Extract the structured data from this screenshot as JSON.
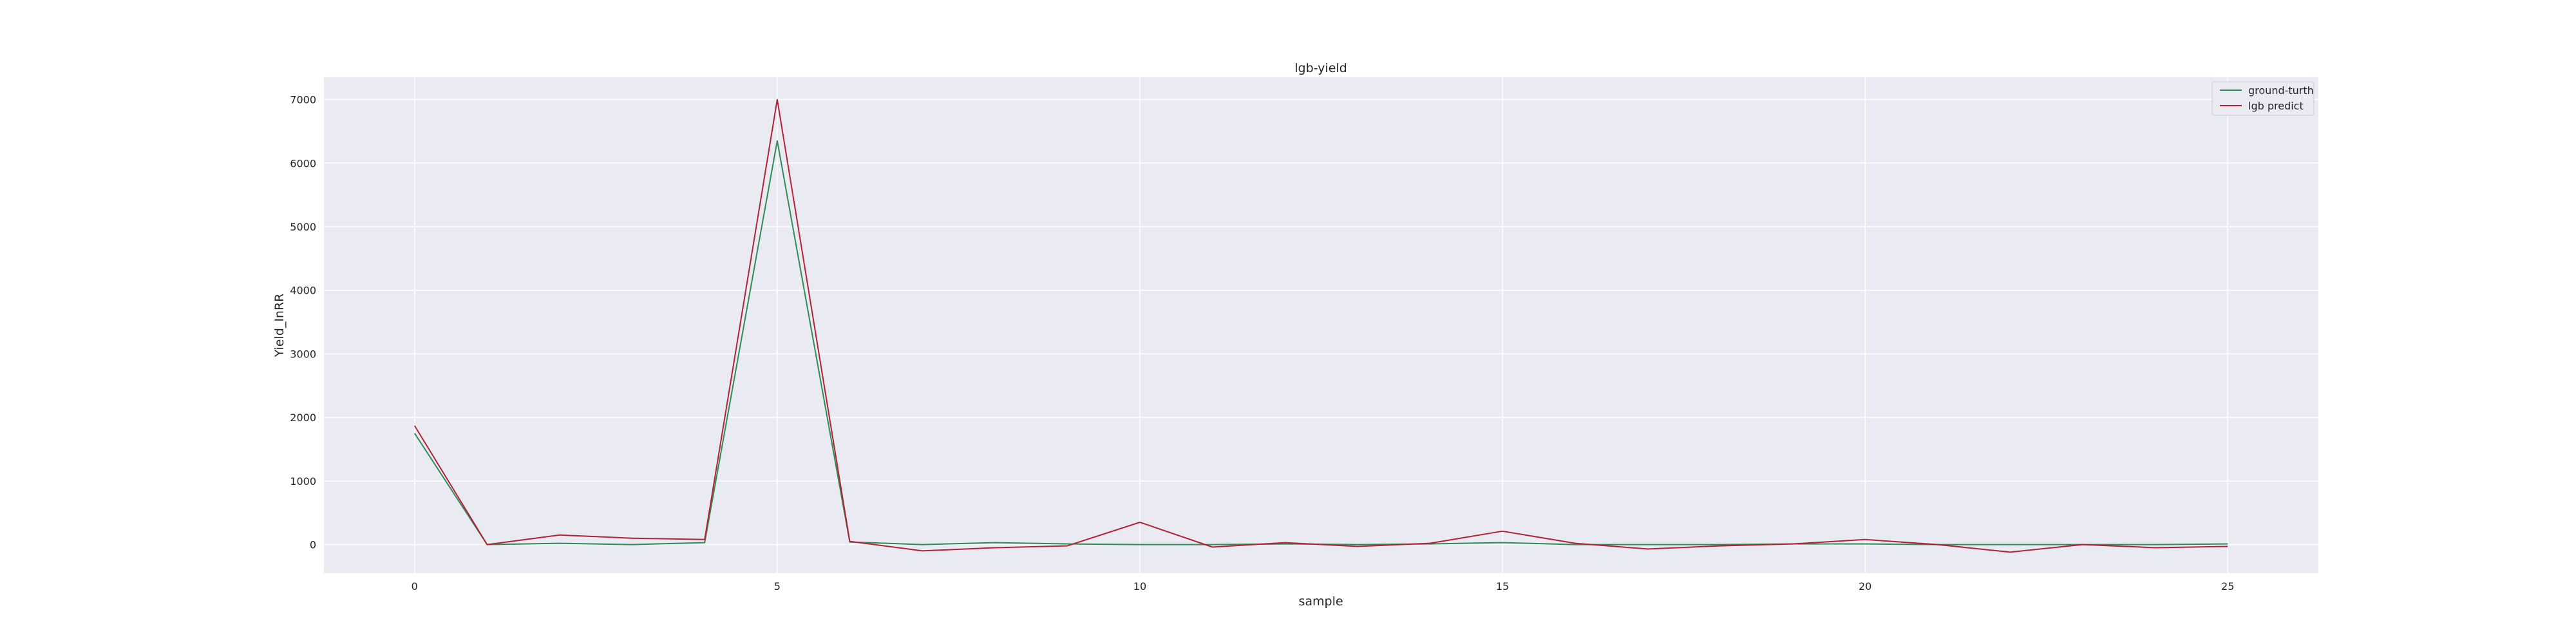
{
  "chart_data": {
    "type": "line",
    "title": "lgb-yield",
    "xlabel": "sample",
    "ylabel": "Yield_InRR",
    "xlim": [
      -1.25,
      26.25
    ],
    "ylim": [
      -450,
      7350
    ],
    "xticks": [
      0,
      5,
      10,
      15,
      20,
      25
    ],
    "xtick_labels": [
      "0",
      "5",
      "10",
      "15",
      "20",
      "25"
    ],
    "yticks": [
      0,
      1000,
      2000,
      3000,
      4000,
      5000,
      6000,
      7000
    ],
    "ytick_labels": [
      "0",
      "1000",
      "2000",
      "3000",
      "4000",
      "5000",
      "6000",
      "7000"
    ],
    "grid": true,
    "legend_position": "top-right",
    "x": [
      0,
      1,
      2,
      3,
      4,
      5,
      6,
      7,
      8,
      9,
      10,
      11,
      12,
      13,
      14,
      15,
      16,
      17,
      18,
      19,
      20,
      21,
      22,
      23,
      24,
      25
    ],
    "series": [
      {
        "name": "ground-turth",
        "color": "#2e8b57",
        "values": [
          1750,
          0,
          20,
          0,
          30,
          6350,
          40,
          0,
          30,
          10,
          0,
          0,
          10,
          0,
          10,
          30,
          0,
          0,
          0,
          10,
          10,
          0,
          0,
          0,
          0,
          10
        ]
      },
      {
        "name": "lgb predict",
        "color": "#b22234",
        "values": [
          1870,
          0,
          150,
          100,
          80,
          7000,
          50,
          -100,
          -50,
          -20,
          350,
          -40,
          30,
          -30,
          20,
          210,
          20,
          -70,
          -20,
          10,
          80,
          0,
          -120,
          0,
          -50,
          -30
        ]
      }
    ]
  }
}
